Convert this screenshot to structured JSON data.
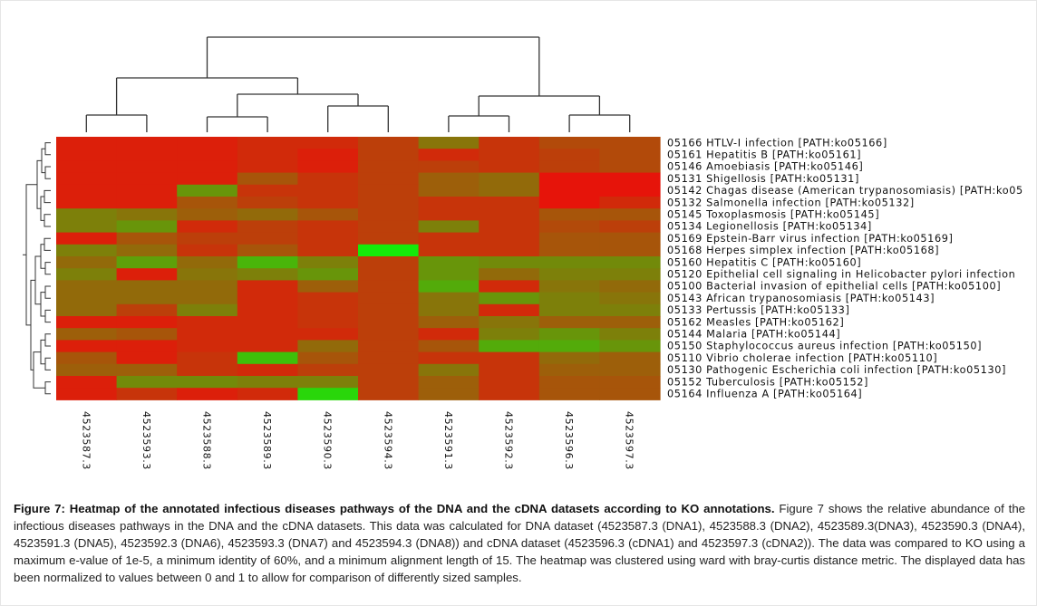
{
  "chart_data": {
    "type": "heatmap",
    "columns": [
      "4523587.3",
      "4523593.3",
      "4523588.3",
      "4523589.3",
      "4523590.3",
      "4523594.3",
      "4523591.3",
      "4523592.3",
      "4523596.3",
      "4523597.3"
    ],
    "rows": [
      "05166 HTLV-I infection [PATH:ko05166]",
      "05161 Hepatitis B [PATH:ko05161]",
      "05146 Amoebiasis [PATH:ko05146]",
      "05131 Shigellosis [PATH:ko05131]",
      "05142 Chagas disease (American trypanosomiasis) [PATH:ko05",
      "05132 Salmonella infection [PATH:ko05132]",
      "05145 Toxoplasmosis [PATH:ko05145]",
      "05134 Legionellosis [PATH:ko05134]",
      "05169 Epstein-Barr virus infection [PATH:ko05169]",
      "05168 Herpes simplex infection [PATH:ko05168]",
      "05160 Hepatitis C [PATH:ko05160]",
      "05120 Epithelial cell signaling in Helicobacter pylori infection",
      "05100 Bacterial invasion of epithelial cells [PATH:ko05100]",
      "05143 African trypanosomiasis [PATH:ko05143]",
      "05133 Pertussis [PATH:ko05133]",
      "05162 Measles [PATH:ko05162]",
      "05144 Malaria [PATH:ko05144]",
      "05150 Staphylococcus aureus infection [PATH:ko05150]",
      "05110 Vibrio cholerae infection [PATH:ko05110]",
      "05130 Pathogenic Escherichia coli infection [PATH:ko05130]",
      "05152 Tuberculosis [PATH:ko05152]",
      "05164 Influenza A [PATH:ko05164]"
    ],
    "values": [
      [
        0.05,
        0.05,
        0.05,
        0.1,
        0.1,
        0.2,
        0.45,
        0.15,
        0.25,
        0.25
      ],
      [
        0.05,
        0.05,
        0.05,
        0.1,
        0.05,
        0.2,
        0.1,
        0.15,
        0.2,
        0.25
      ],
      [
        0.05,
        0.05,
        0.05,
        0.1,
        0.05,
        0.2,
        0.2,
        0.15,
        0.2,
        0.25
      ],
      [
        0.05,
        0.05,
        0.05,
        0.3,
        0.15,
        0.2,
        0.35,
        0.4,
        0.0,
        0.0
      ],
      [
        0.05,
        0.05,
        0.6,
        0.15,
        0.15,
        0.2,
        0.35,
        0.4,
        0.0,
        0.0
      ],
      [
        0.05,
        0.05,
        0.3,
        0.2,
        0.15,
        0.2,
        0.15,
        0.15,
        0.0,
        0.1
      ],
      [
        0.5,
        0.45,
        0.35,
        0.4,
        0.3,
        0.2,
        0.15,
        0.15,
        0.3,
        0.3
      ],
      [
        0.5,
        0.6,
        0.1,
        0.2,
        0.15,
        0.2,
        0.5,
        0.15,
        0.25,
        0.2
      ],
      [
        0.05,
        0.3,
        0.2,
        0.2,
        0.15,
        0.2,
        0.15,
        0.15,
        0.3,
        0.3
      ],
      [
        0.5,
        0.4,
        0.15,
        0.3,
        0.15,
        1.0,
        0.15,
        0.15,
        0.3,
        0.3
      ],
      [
        0.4,
        0.65,
        0.4,
        0.75,
        0.5,
        0.2,
        0.6,
        0.55,
        0.55,
        0.55
      ],
      [
        0.5,
        0.05,
        0.45,
        0.5,
        0.6,
        0.2,
        0.6,
        0.4,
        0.5,
        0.5
      ],
      [
        0.4,
        0.4,
        0.4,
        0.1,
        0.35,
        0.2,
        0.7,
        0.1,
        0.45,
        0.4
      ],
      [
        0.4,
        0.4,
        0.4,
        0.1,
        0.15,
        0.2,
        0.45,
        0.6,
        0.5,
        0.45
      ],
      [
        0.4,
        0.2,
        0.5,
        0.1,
        0.15,
        0.2,
        0.45,
        0.1,
        0.5,
        0.5
      ],
      [
        0.05,
        0.05,
        0.1,
        0.1,
        0.15,
        0.2,
        0.35,
        0.45,
        0.35,
        0.35
      ],
      [
        0.35,
        0.3,
        0.1,
        0.1,
        0.1,
        0.2,
        0.1,
        0.5,
        0.6,
        0.5
      ],
      [
        0.05,
        0.05,
        0.1,
        0.1,
        0.4,
        0.2,
        0.3,
        0.7,
        0.7,
        0.6
      ],
      [
        0.3,
        0.05,
        0.15,
        0.8,
        0.3,
        0.2,
        0.15,
        0.15,
        0.4,
        0.35
      ],
      [
        0.35,
        0.35,
        0.15,
        0.1,
        0.2,
        0.2,
        0.45,
        0.15,
        0.35,
        0.35
      ],
      [
        0.05,
        0.55,
        0.55,
        0.5,
        0.5,
        0.2,
        0.35,
        0.15,
        0.3,
        0.3
      ],
      [
        0.05,
        0.15,
        0.05,
        0.1,
        0.9,
        0.2,
        0.35,
        0.15,
        0.3,
        0.3
      ]
    ],
    "color_scale": {
      "low": "#ff0000",
      "high": "#00ff00"
    }
  },
  "caption": {
    "bold": "Figure 7: Heatmap of the annotated infectious diseases pathways of the DNA and the cDNA datasets according to KO annotations.",
    "text": " Figure 7 shows the relative abundance of the infectious diseases pathways in the DNA and the cDNA datasets. This data was calculated for DNA dataset (4523587.3 (DNA1), 4523588.3 (DNA2), 4523589.3(DNA3), 4523590.3 (DNA4), 4523591.3 (DNA5), 4523592.3 (DNA6), 4523593.3 (DNA7) and 4523594.3 (DNA8)) and cDNA dataset (4523596.3 (cDNA1) and 4523597.3 (cDNA2)). The data was compared to KO using a maximum e-value of 1e-5, a minimum identity of 60%, and a minimum alignment length of 15. The heatmap was clustered using ward with bray-curtis distance metric. The displayed data has been normalized to values between 0 and 1 to allow for comparison of differently sized samples."
  }
}
